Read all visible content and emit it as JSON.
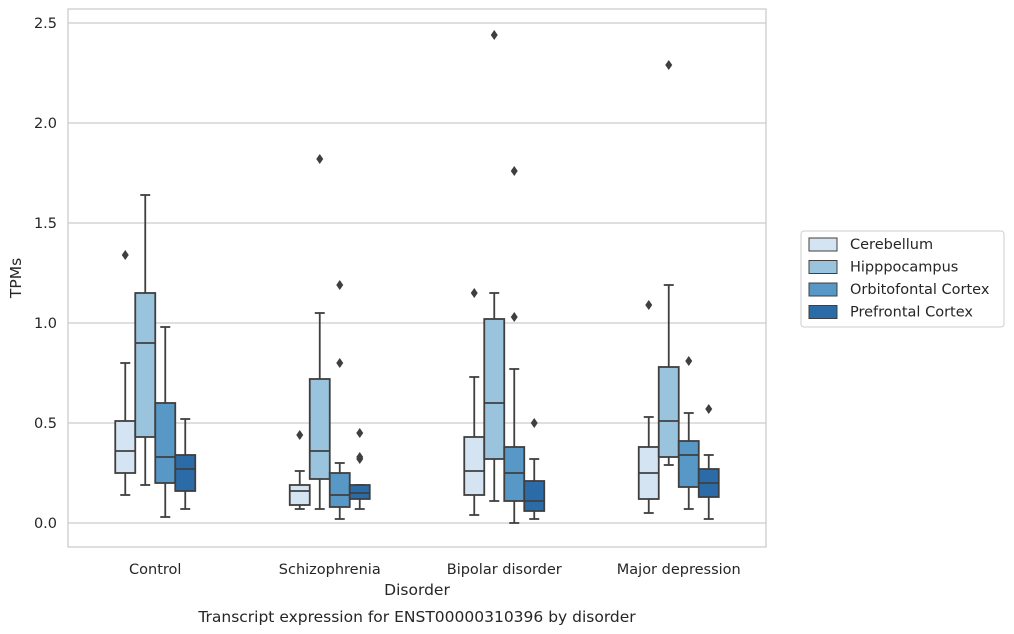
{
  "chart_data": {
    "type": "box",
    "xlabel": "Disorder",
    "ylabel": "TPMs",
    "caption": "Transcript expression for ENST00000310396 by disorder",
    "ylim": [
      -0.12,
      2.57
    ],
    "yticks": [
      "0.0",
      "0.5",
      "1.0",
      "1.5",
      "2.0",
      "2.5"
    ],
    "ytick_values": [
      0,
      0.5,
      1.0,
      1.5,
      2.0,
      2.5
    ],
    "grid": true,
    "legend_position": "right",
    "categories": [
      "Control",
      "Schizophrenia",
      "Bipolar disorder",
      "Major depression"
    ],
    "series": [
      {
        "name": "Cerebellum",
        "color": "#d5e4f2",
        "boxes": [
          {
            "whisker_low": 0.14,
            "q1": 0.25,
            "median": 0.36,
            "q3": 0.51,
            "whisker_high": 0.8,
            "outliers": [
              1.34
            ]
          },
          {
            "whisker_low": 0.07,
            "q1": 0.09,
            "median": 0.16,
            "q3": 0.19,
            "whisker_high": 0.26,
            "outliers": [
              0.44
            ]
          },
          {
            "whisker_low": 0.04,
            "q1": 0.14,
            "median": 0.26,
            "q3": 0.43,
            "whisker_high": 0.73,
            "outliers": [
              1.15
            ]
          },
          {
            "whisker_low": 0.05,
            "q1": 0.12,
            "median": 0.25,
            "q3": 0.38,
            "whisker_high": 0.53,
            "outliers": [
              1.09
            ]
          }
        ]
      },
      {
        "name": "Hipppocampus",
        "color": "#9ac3de",
        "boxes": [
          {
            "whisker_low": 0.19,
            "q1": 0.43,
            "median": 0.9,
            "q3": 1.15,
            "whisker_high": 1.64,
            "outliers": []
          },
          {
            "whisker_low": 0.07,
            "q1": 0.22,
            "median": 0.36,
            "q3": 0.72,
            "whisker_high": 1.05,
            "outliers": [
              1.82
            ]
          },
          {
            "whisker_low": 0.11,
            "q1": 0.32,
            "median": 0.6,
            "q3": 1.02,
            "whisker_high": 1.15,
            "outliers": [
              2.44
            ]
          },
          {
            "whisker_low": 0.29,
            "q1": 0.33,
            "median": 0.51,
            "q3": 0.78,
            "whisker_high": 1.19,
            "outliers": [
              2.29
            ]
          }
        ]
      },
      {
        "name": "Orbitofontal Cortex",
        "color": "#5898c6",
        "boxes": [
          {
            "whisker_low": 0.03,
            "q1": 0.2,
            "median": 0.33,
            "q3": 0.6,
            "whisker_high": 0.98,
            "outliers": []
          },
          {
            "whisker_low": 0.02,
            "q1": 0.08,
            "median": 0.14,
            "q3": 0.25,
            "whisker_high": 0.3,
            "outliers": [
              0.8,
              1.19
            ]
          },
          {
            "whisker_low": 0.0,
            "q1": 0.11,
            "median": 0.25,
            "q3": 0.38,
            "whisker_high": 0.77,
            "outliers": [
              1.03,
              1.76
            ]
          },
          {
            "whisker_low": 0.07,
            "q1": 0.18,
            "median": 0.34,
            "q3": 0.41,
            "whisker_high": 0.55,
            "outliers": [
              0.81
            ]
          }
        ]
      },
      {
        "name": "Prefrontal Cortex",
        "color": "#2b6ba8",
        "boxes": [
          {
            "whisker_low": 0.07,
            "q1": 0.16,
            "median": 0.27,
            "q3": 0.34,
            "whisker_high": 0.52,
            "outliers": []
          },
          {
            "whisker_low": 0.07,
            "q1": 0.12,
            "median": 0.15,
            "q3": 0.19,
            "whisker_high": 0.19,
            "outliers": [
              0.32,
              0.33,
              0.45
            ]
          },
          {
            "whisker_low": 0.02,
            "q1": 0.06,
            "median": 0.11,
            "q3": 0.21,
            "whisker_high": 0.32,
            "outliers": [
              0.5
            ]
          },
          {
            "whisker_low": 0.02,
            "q1": 0.13,
            "median": 0.2,
            "q3": 0.27,
            "whisker_high": 0.34,
            "outliers": [
              0.57
            ]
          }
        ]
      }
    ]
  }
}
